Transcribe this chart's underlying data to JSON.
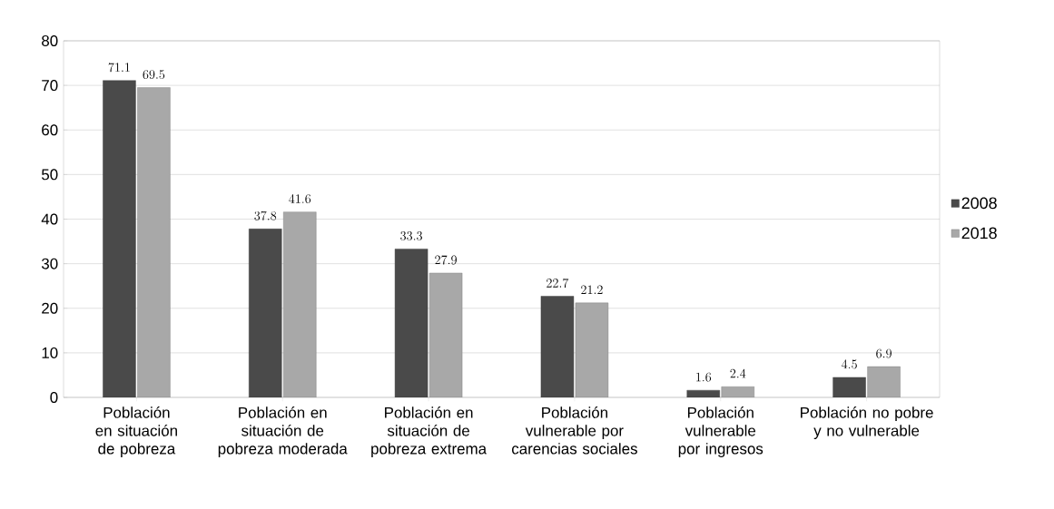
{
  "chart_data": {
    "type": "bar",
    "categories": [
      "Población en situación de pobreza",
      "Población en situación de pobreza moderada",
      "Población en situación de pobreza extrema",
      "Población vulnerable por carencias sociales",
      "Población vulnerable por ingresos",
      "Población no pobre y no vulnerable"
    ],
    "series": [
      {
        "name": "2008",
        "color": "#4a4a4a",
        "values": [
          71.1,
          37.8,
          33.3,
          22.7,
          1.6,
          4.5
        ]
      },
      {
        "name": "2018",
        "color": "#a8a8a8",
        "values": [
          69.5,
          41.6,
          27.9,
          21.2,
          2.4,
          6.9
        ]
      }
    ],
    "ylim": [
      0,
      80
    ],
    "yticks": [
      0,
      10,
      20,
      30,
      40,
      50,
      60,
      70,
      80
    ],
    "grid": "y",
    "legend": "right",
    "data_labels": true
  }
}
